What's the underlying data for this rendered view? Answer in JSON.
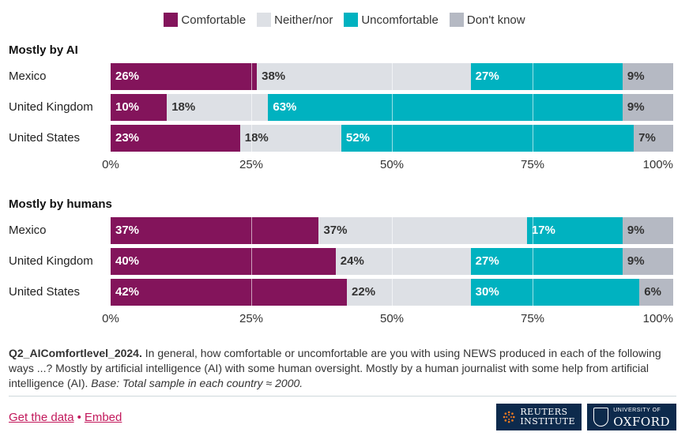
{
  "legend": [
    {
      "label": "Comfortable",
      "color": "#83145b"
    },
    {
      "label": "Neither/nor",
      "color": "#dde0e5"
    },
    {
      "label": "Uncomfortable",
      "color": "#00b2c0"
    },
    {
      "label": "Don't know",
      "color": "#b5b9c3"
    }
  ],
  "chart_data": {
    "type": "bar",
    "orientation": "horizontal",
    "stacked": true,
    "xlim": [
      0,
      100
    ],
    "ticks": [
      "0%",
      "25%",
      "50%",
      "75%",
      "100%"
    ],
    "panels": [
      {
        "title": "Mostly by AI",
        "categories": [
          "Mexico",
          "United Kingdom",
          "United States"
        ],
        "series": [
          {
            "name": "Comfortable",
            "values": [
              26,
              10,
              23
            ]
          },
          {
            "name": "Neither/nor",
            "values": [
              38,
              18,
              18
            ]
          },
          {
            "name": "Uncomfortable",
            "values": [
              27,
              63,
              52
            ]
          },
          {
            "name": "Don't know",
            "values": [
              9,
              9,
              7
            ]
          }
        ]
      },
      {
        "title": "Mostly by humans",
        "categories": [
          "Mexico",
          "United Kingdom",
          "United States"
        ],
        "series": [
          {
            "name": "Comfortable",
            "values": [
              37,
              40,
              42
            ]
          },
          {
            "name": "Neither/nor",
            "values": [
              37,
              24,
              22
            ]
          },
          {
            "name": "Uncomfortable",
            "values": [
              17,
              27,
              30
            ]
          },
          {
            "name": "Don't know",
            "values": [
              9,
              9,
              6
            ]
          }
        ]
      }
    ]
  },
  "note": {
    "question_id": "Q2_AIComfortlevel_2024.",
    "text": " In general, how comfortable or uncomfortable are you with using NEWS produced in each of the following ways ...? Mostly by artificial intelligence (AI) with some human oversight. Mostly by a human journalist with some help from artificial intelligence (AI). ",
    "base": "Base: Total sample in each country ≈ 2000."
  },
  "footer": {
    "get_data": "Get the data",
    "separator": "•",
    "embed": "Embed"
  },
  "logos": {
    "reuters": [
      "REUTERS",
      "INSTITUTE"
    ],
    "oxford_small": "UNIVERSITY OF",
    "oxford_big": "OXFORD"
  },
  "colors": {
    "label_on_dark": "#ffffff",
    "label_on_light": "#333333"
  }
}
